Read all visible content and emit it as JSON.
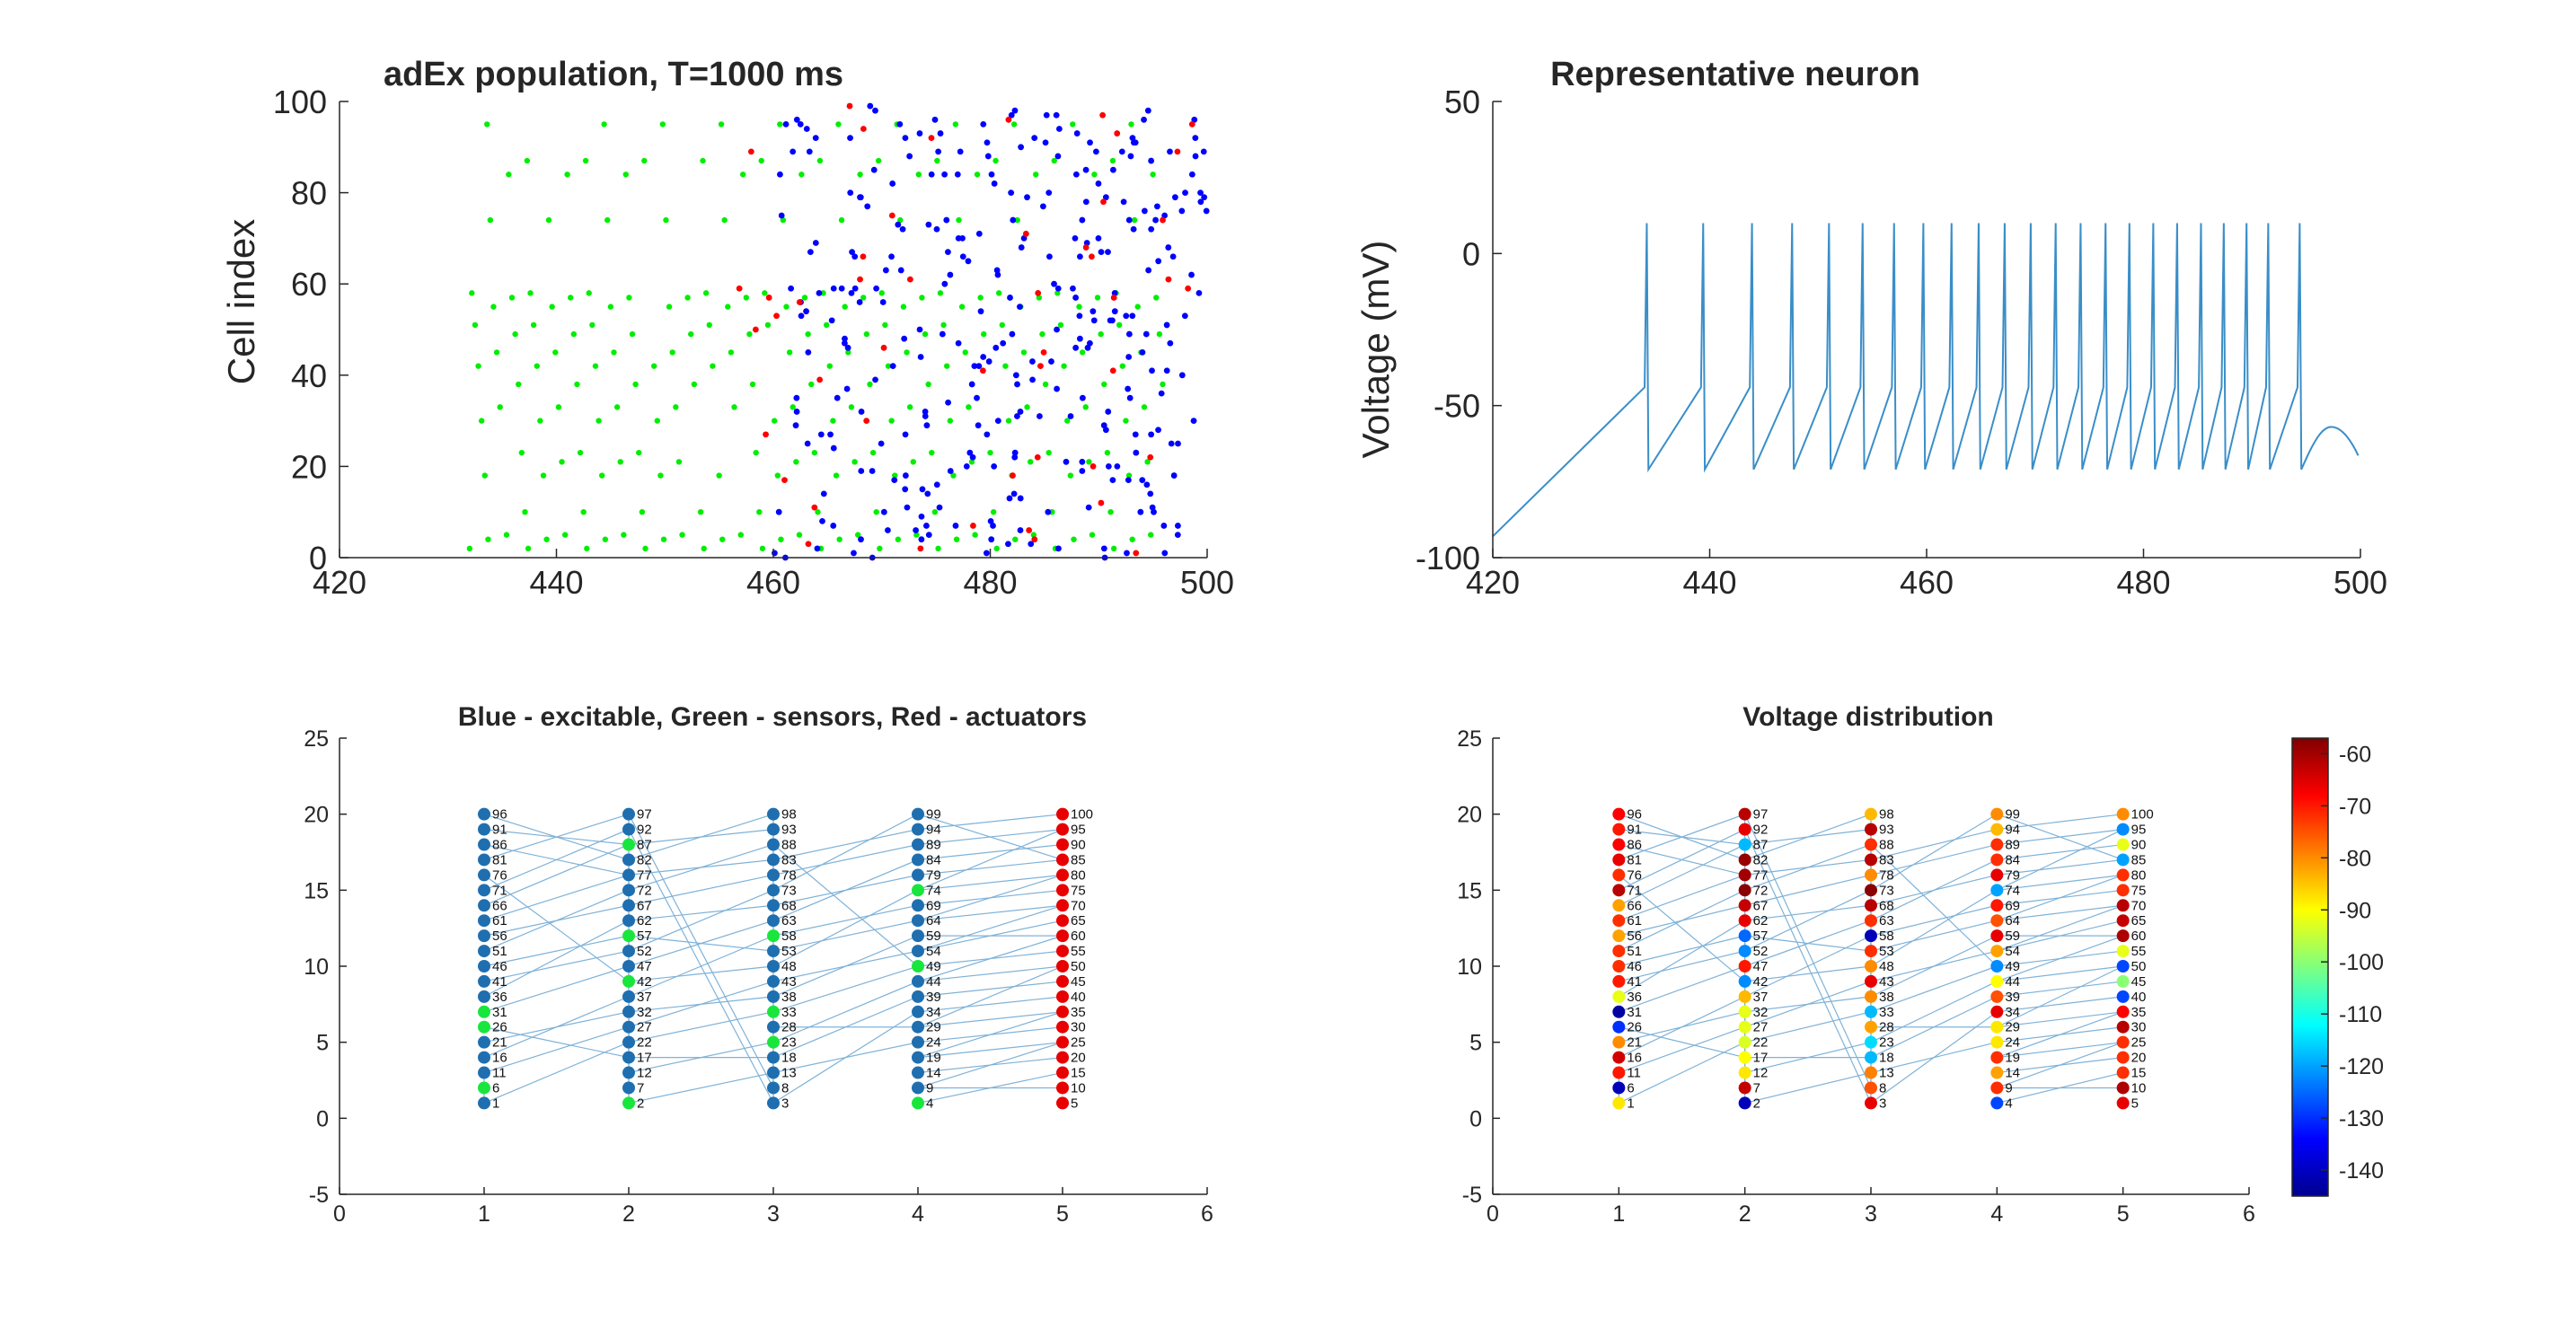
{
  "figure": {
    "panels": {
      "raster": {
        "title": "adEx population, T=1000 ms"
      },
      "neuron": {
        "title": "Representative neuron"
      },
      "network": {
        "title": "Blue - excitable, Green - sensors, Red - actuators"
      },
      "voltage": {
        "title": "Voltage distribution"
      }
    }
  },
  "colors": {
    "excitable": "#0000ff",
    "sensor": "#00ee00",
    "actuator": "#ff0000",
    "trace": "#3a8ec8",
    "edge": "#7fb2d8",
    "node_blue": "#1f6fb0",
    "node_green": "#19e63c",
    "node_red": "#e80000"
  },
  "chart_data": [
    {
      "type": "scatter",
      "panel": "raster",
      "title": "adEx population, T=1000 ms",
      "xlabel": "",
      "ylabel": "Cell index",
      "xlim": [
        420,
        500
      ],
      "ylim": [
        0,
        100
      ],
      "xticks": [
        "420",
        "440",
        "460",
        "480",
        "500"
      ],
      "yticks": [
        "0",
        "20",
        "40",
        "60",
        "80",
        "100"
      ],
      "sensor_rows": [
        2,
        4,
        5,
        10,
        18,
        21,
        23,
        30,
        33,
        38,
        42,
        45,
        49,
        51,
        55,
        57,
        58,
        74,
        84,
        87,
        95
      ],
      "sensor_period_ms": 5.4,
      "sensor_onset_ms": 432,
      "sensor_offset_ms": 496,
      "excitable_spike_window_ms": [
        456,
        500
      ],
      "actuator_spike_window_ms": [
        456,
        500
      ],
      "note_series": [
        "excitable",
        "sensors",
        "actuators"
      ]
    },
    {
      "type": "line",
      "panel": "neuron",
      "title": "Representative neuron",
      "xlabel": "",
      "ylabel": "Voltage (mV)",
      "xlim": [
        420,
        500
      ],
      "ylim": [
        -100,
        50
      ],
      "xticks": [
        "420",
        "440",
        "460",
        "480",
        "500"
      ],
      "yticks": [
        "-100",
        "-50",
        "0",
        "50"
      ],
      "rest_start_mv": -93,
      "first_spike_threshold_mv": -44,
      "spike_peak_mv": 10,
      "reset_mv": -71,
      "spike_times_ms": [
        434.2,
        439.4,
        443.9,
        447.6,
        451.0,
        454.1,
        457.0,
        459.7,
        462.3,
        464.8,
        467.2,
        469.6,
        471.9,
        474.2,
        476.5,
        478.7,
        480.9,
        483.1,
        485.3,
        487.4,
        489.5,
        491.5,
        494.4
      ],
      "after_last_spike": {
        "peak_time_ms": 497.3,
        "peak_mv": -57,
        "end_mv": -68
      }
    },
    {
      "type": "scatter",
      "panel": "network",
      "title": "Blue - excitable, Green - sensors, Red - actuators",
      "xlim": [
        0,
        6
      ],
      "ylim": [
        -5,
        25
      ],
      "xticks": [
        "0",
        "1",
        "2",
        "3",
        "4",
        "5",
        "6"
      ],
      "yticks": [
        "-5",
        "0",
        "5",
        "10",
        "15",
        "20",
        "25"
      ],
      "columns": 5,
      "rows": 20,
      "node_labels": [
        "1",
        "2",
        "3",
        "4",
        "5",
        "6",
        "7",
        "8",
        "9",
        "10",
        "11",
        "12",
        "13",
        "14",
        "15",
        "16",
        "17",
        "18",
        "19",
        "20",
        "21",
        "22",
        "23",
        "24",
        "25",
        "26",
        "27",
        "28",
        "29",
        "30",
        "31",
        "32",
        "33",
        "34",
        "35",
        "36",
        "37",
        "38",
        "39",
        "40",
        "41",
        "42",
        "43",
        "44",
        "45",
        "46",
        "47",
        "48",
        "49",
        "50",
        "51",
        "52",
        "53",
        "54",
        "55",
        "56",
        "57",
        "58",
        "59",
        "60",
        "61",
        "62",
        "63",
        "64",
        "65",
        "66",
        "67",
        "68",
        "69",
        "70",
        "71",
        "72",
        "73",
        "74",
        "75",
        "76",
        "77",
        "78",
        "79",
        "80",
        "81",
        "82",
        "83",
        "84",
        "85",
        "86",
        "87",
        "88",
        "89",
        "90",
        "91",
        "92",
        "93",
        "94",
        "95",
        "96",
        "97",
        "98",
        "99",
        "100"
      ],
      "sensor_nodes": [
        2,
        4,
        6,
        23,
        26,
        31,
        33,
        42,
        49,
        57,
        58,
        74,
        87
      ],
      "actuator_nodes": [
        5,
        10,
        15,
        20,
        25,
        30,
        35,
        40,
        45,
        50,
        55,
        60,
        65,
        70,
        75,
        80,
        85,
        90,
        95,
        100
      ],
      "edges": [
        [
          1,
          6
        ],
        [
          6,
          11
        ],
        [
          2,
          97
        ],
        [
          7,
          82
        ],
        [
          3,
          98
        ],
        [
          8,
          93
        ],
        [
          3,
          34
        ],
        [
          13,
          24
        ],
        [
          18,
          39
        ],
        [
          23,
          44
        ],
        [
          28,
          29
        ],
        [
          33,
          49
        ],
        [
          38,
          59
        ],
        [
          43,
          54
        ],
        [
          48,
          74
        ],
        [
          53,
          64
        ],
        [
          58,
          69
        ],
        [
          63,
          84
        ],
        [
          68,
          79
        ],
        [
          73,
          99
        ],
        [
          78,
          89
        ],
        [
          83,
          94
        ],
        [
          88,
          49
        ],
        [
          1,
          22
        ],
        [
          11,
          27
        ],
        [
          16,
          37
        ],
        [
          21,
          32
        ],
        [
          26,
          17
        ],
        [
          31,
          47
        ],
        [
          36,
          62
        ],
        [
          41,
          52
        ],
        [
          46,
          57
        ],
        [
          51,
          72
        ],
        [
          56,
          67
        ],
        [
          61,
          77
        ],
        [
          66,
          87
        ],
        [
          71,
          92
        ],
        [
          76,
          42
        ],
        [
          81,
          97
        ],
        [
          86,
          77
        ],
        [
          91,
          87
        ],
        [
          96,
          82
        ],
        [
          2,
          13
        ],
        [
          12,
          23
        ],
        [
          17,
          18
        ],
        [
          22,
          33
        ],
        [
          27,
          43
        ],
        [
          32,
          38
        ],
        [
          37,
          58
        ],
        [
          42,
          48
        ],
        [
          47,
          63
        ],
        [
          52,
          73
        ],
        [
          57,
          53
        ],
        [
          62,
          68
        ],
        [
          67,
          78
        ],
        [
          72,
          88
        ],
        [
          77,
          83
        ],
        [
          82,
          98
        ],
        [
          87,
          93
        ],
        [
          92,
          3
        ],
        [
          97,
          8
        ],
        [
          4,
          15
        ],
        [
          9,
          10
        ],
        [
          14,
          20
        ],
        [
          19,
          25
        ],
        [
          24,
          30
        ],
        [
          29,
          35
        ],
        [
          34,
          40
        ],
        [
          39,
          45
        ],
        [
          44,
          50
        ],
        [
          49,
          55
        ],
        [
          54,
          65
        ],
        [
          59,
          60
        ],
        [
          64,
          70
        ],
        [
          69,
          75
        ],
        [
          74,
          80
        ],
        [
          79,
          85
        ],
        [
          84,
          90
        ],
        [
          89,
          95
        ],
        [
          94,
          100
        ],
        [
          99,
          85
        ],
        [
          9,
          25
        ],
        [
          19,
          35
        ],
        [
          29,
          50
        ],
        [
          44,
          60
        ],
        [
          54,
          70
        ],
        [
          64,
          80
        ],
        [
          74,
          95
        ]
      ]
    },
    {
      "type": "scatter",
      "panel": "voltage",
      "title": "Voltage distribution",
      "xlim": [
        0,
        6
      ],
      "ylim": [
        -5,
        25
      ],
      "xticks": [
        "0",
        "1",
        "2",
        "3",
        "4",
        "5",
        "6"
      ],
      "yticks": [
        "-5",
        "0",
        "5",
        "10",
        "15",
        "20",
        "25"
      ],
      "colorbar": {
        "cmap": "jet",
        "clim": [
          -145,
          -57
        ],
        "ticks": [
          "-60",
          "-70",
          "-80",
          "-90",
          "-100",
          "-110",
          "-120",
          "-130",
          "-140"
        ]
      },
      "node_voltages_mv": [
        -88,
        -140,
        -66,
        -128,
        -66,
        -140,
        -63,
        -75,
        -72,
        -61,
        -70,
        -88,
        -79,
        -82,
        -72,
        -64,
        -90,
        -118,
        -72,
        -72,
        -80,
        -93,
        -115,
        -88,
        -72,
        -130,
        -92,
        -82,
        -88,
        -62,
        -142,
        -92,
        -118,
        -66,
        -68,
        -92,
        -84,
        -80,
        -75,
        -128,
        -70,
        -122,
        -66,
        -90,
        -100,
        -72,
        -70,
        -80,
        -122,
        -128,
        -72,
        -122,
        -72,
        -82,
        -92,
        -82,
        -125,
        -140,
        -66,
        -61,
        -72,
        -66,
        -72,
        -75,
        -63,
        -82,
        -63,
        -62,
        -70,
        -62,
        -62,
        -58,
        -58,
        -120,
        -72,
        -72,
        -60,
        -80,
        -66,
        -72,
        -66,
        -59,
        -62,
        -72,
        -120,
        -68,
        -118,
        -72,
        -72,
        -92,
        -70,
        -66,
        -62,
        -84,
        -122,
        -68,
        -62,
        -84,
        -80,
        -80
      ]
    }
  ]
}
